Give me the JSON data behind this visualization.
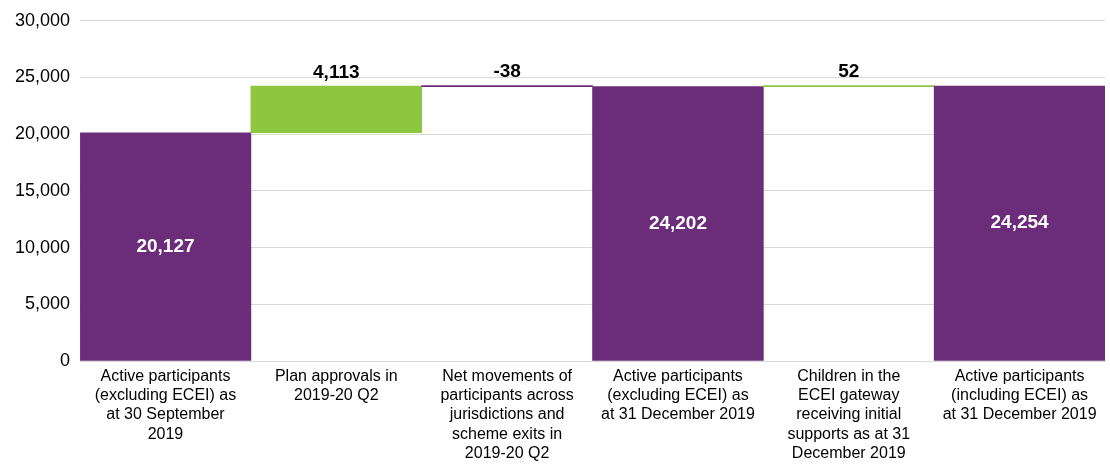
{
  "chart_data": {
    "type": "bar",
    "categories": [
      "Active participants (excluding ECEI) as at 30 September 2019",
      "Plan approvals in 2019-20 Q2",
      "Net movements of participants across jurisdictions and scheme exits in 2019-20 Q2",
      "Active participants (excluding ECEI) as at 31 December 2019",
      "Children in the ECEI gateway receiving initial supports as at 31 December 2019",
      "Active participants (including ECEI) as at 31 December 2019"
    ],
    "values": [
      20127,
      4113,
      -38,
      24202,
      52,
      24254
    ],
    "base": [
      0,
      20127,
      24240,
      0,
      24202,
      0
    ],
    "colors": [
      "#6b2c7a",
      "#8dc63f",
      "#6b2c7a",
      "#6b2c7a",
      "#8dc63f",
      "#6b2c7a"
    ],
    "value_labels": [
      "20,127",
      "4,113",
      "-38",
      "24,202",
      "52",
      "24,254"
    ],
    "ylim": [
      0,
      30000
    ],
    "yticks": [
      {
        "value": 0,
        "label": "0"
      },
      {
        "value": 5000,
        "label": "5,000"
      },
      {
        "value": 10000,
        "label": "10,000"
      },
      {
        "value": 15000,
        "label": "15,000"
      },
      {
        "value": 20000,
        "label": "20,000"
      },
      {
        "value": 25000,
        "label": "25,000"
      },
      {
        "value": 30000,
        "label": "30,000"
      }
    ],
    "grid": "y"
  }
}
